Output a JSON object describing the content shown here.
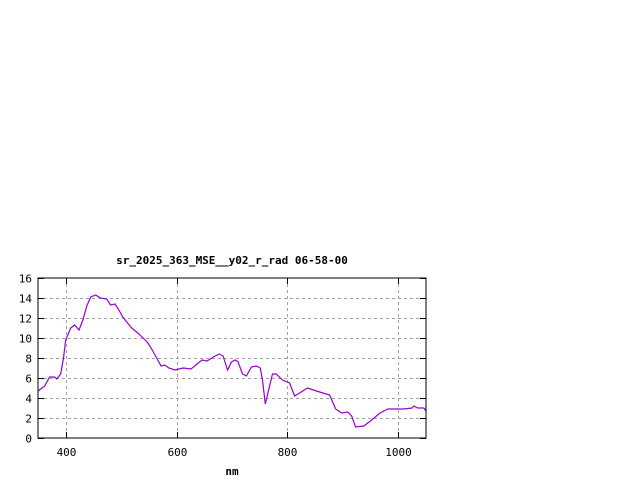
{
  "chart_data": {
    "type": "line",
    "title": "sr_2025_363_MSE__y02_r_rad 06-58-00",
    "xlabel": "nm",
    "ylabel": "",
    "xlim": [
      350,
      1050
    ],
    "ylim": [
      0,
      16
    ],
    "xticks": [
      400,
      600,
      800,
      1000
    ],
    "yticks": [
      0,
      2,
      4,
      6,
      8,
      10,
      12,
      14,
      16
    ],
    "grid": true,
    "legend": "none",
    "line_color": "#9400d3",
    "series": [
      {
        "x": [
          350,
          362,
          371,
          380,
          384,
          391,
          396,
          400,
          409,
          416,
          424,
          431,
          438,
          445,
          454,
          463,
          474,
          481,
          489,
          496,
          503,
          510,
          519,
          532,
          547,
          554,
          561,
          572,
          579,
          586,
          597,
          612,
          626,
          637,
          646,
          655,
          666,
          677,
          684,
          688,
          692,
          699,
          706,
          711,
          719,
          726,
          735,
          744,
          751,
          755,
          760,
          767,
          773,
          780,
          791,
          804,
          813,
          822,
          836,
          847,
          858,
          876,
          887,
          898,
          909,
          916,
          923,
          938,
          952,
          967,
          981,
          995,
          1010,
          1025,
          1028,
          1035,
          1046,
          1050
        ],
        "y": [
          4.7,
          5.2,
          6.1,
          6.1,
          5.9,
          6.4,
          8.0,
          9.8,
          11.0,
          11.3,
          10.8,
          11.8,
          13.2,
          14.1,
          14.3,
          14.0,
          13.9,
          13.3,
          13.4,
          12.8,
          12.1,
          11.6,
          11.0,
          10.4,
          9.6,
          9.0,
          8.3,
          7.2,
          7.3,
          7.0,
          6.8,
          7.0,
          6.9,
          7.4,
          7.8,
          7.7,
          8.1,
          8.4,
          8.2,
          7.5,
          6.8,
          7.6,
          7.8,
          7.6,
          6.4,
          6.2,
          7.1,
          7.2,
          7.0,
          5.8,
          3.4,
          5.0,
          6.4,
          6.4,
          5.8,
          5.5,
          4.2,
          4.5,
          5.0,
          4.8,
          4.6,
          4.3,
          2.9,
          2.5,
          2.6,
          2.2,
          1.1,
          1.2,
          1.8,
          2.5,
          2.9,
          2.9,
          2.9,
          3.0,
          3.2,
          3.0,
          3.0,
          2.7
        ]
      }
    ]
  }
}
